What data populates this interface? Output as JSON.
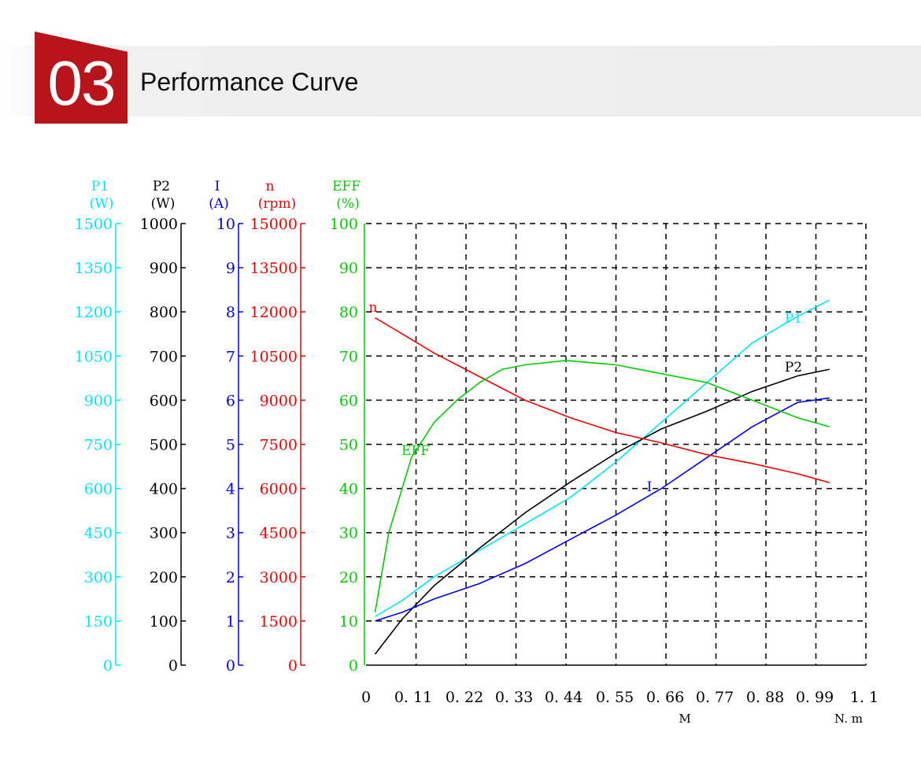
{
  "section": {
    "number": "03",
    "title": "Performance Curve"
  },
  "chart_data": {
    "type": "line",
    "x_axis": {
      "ticks": [
        "0",
        "0. 11",
        "0. 22",
        "0. 33",
        "0. 44",
        "0. 55",
        "0. 66",
        "0. 77",
        "0. 88",
        "0. 99",
        "1. 1"
      ],
      "label": "M",
      "unit": "N. m",
      "range": [
        0,
        1.1
      ]
    },
    "y_axes": [
      {
        "id": "P1",
        "name": "P1",
        "unit": "(W)",
        "color": "#00e5ff",
        "range": [
          0,
          1500
        ],
        "ticks": [
          "0",
          "150",
          "300",
          "450",
          "600",
          "750",
          "900",
          "1050",
          "1200",
          "1350",
          "1500"
        ]
      },
      {
        "id": "P2",
        "name": "P2",
        "unit": "(W)",
        "color": "#000000",
        "range": [
          0,
          1000
        ],
        "ticks": [
          "0",
          "100",
          "200",
          "300",
          "400",
          "500",
          "600",
          "700",
          "800",
          "900",
          "1000"
        ]
      },
      {
        "id": "I",
        "name": "I",
        "unit": "(A)",
        "color": "#0000ee",
        "range": [
          0,
          10
        ],
        "ticks": [
          "0",
          "1",
          "2",
          "3",
          "4",
          "5",
          "6",
          "7",
          "8",
          "9",
          "10"
        ]
      },
      {
        "id": "n",
        "name": "n",
        "unit": "(rpm)",
        "color": "#ee0000",
        "range": [
          0,
          15000
        ],
        "ticks": [
          "0",
          "1500",
          "3000",
          "4500",
          "6000",
          "7500",
          "9000",
          "10500",
          "12000",
          "13500",
          "15000"
        ]
      },
      {
        "id": "EFF",
        "name": "EFF",
        "unit": "(%)",
        "color": "#00cc00",
        "range": [
          0,
          100
        ],
        "ticks": [
          "0",
          "10",
          "20",
          "30",
          "40",
          "50",
          "60",
          "70",
          "80",
          "90",
          "100"
        ]
      }
    ],
    "grid": true,
    "series": [
      {
        "name": "P1",
        "axis": "P1",
        "color": "#00e5ff",
        "x": [
          0.02,
          0.08,
          0.15,
          0.25,
          0.35,
          0.45,
          0.55,
          0.65,
          0.75,
          0.85,
          0.95,
          1.02
        ],
        "y": [
          165,
          220,
          300,
          390,
          480,
          570,
          690,
          825,
          960,
          1095,
          1185,
          1240
        ]
      },
      {
        "name": "P2",
        "axis": "P2",
        "color": "#000000",
        "x": [
          0.02,
          0.08,
          0.15,
          0.25,
          0.35,
          0.45,
          0.55,
          0.65,
          0.75,
          0.85,
          0.95,
          1.02
        ],
        "y": [
          25,
          105,
          180,
          265,
          345,
          415,
          480,
          535,
          575,
          620,
          655,
          670
        ]
      },
      {
        "name": "I",
        "axis": "I",
        "color": "#0000ee",
        "x": [
          0.02,
          0.08,
          0.15,
          0.25,
          0.35,
          0.45,
          0.55,
          0.65,
          0.75,
          0.85,
          0.95,
          1.02
        ],
        "y": [
          1.0,
          1.2,
          1.5,
          1.85,
          2.3,
          2.85,
          3.4,
          4.0,
          4.7,
          5.4,
          5.95,
          6.05
        ]
      },
      {
        "name": "n",
        "axis": "n",
        "color": "#ee0000",
        "x": [
          0.02,
          0.08,
          0.15,
          0.25,
          0.35,
          0.45,
          0.55,
          0.65,
          0.75,
          0.85,
          0.95,
          1.02
        ],
        "y": [
          11800,
          11250,
          10600,
          9800,
          9000,
          8400,
          7900,
          7550,
          7150,
          6850,
          6500,
          6200
        ]
      },
      {
        "name": "EFF",
        "axis": "EFF",
        "color": "#00cc00",
        "x": [
          0.02,
          0.05,
          0.1,
          0.15,
          0.2,
          0.25,
          0.3,
          0.35,
          0.44,
          0.55,
          0.65,
          0.75,
          0.85,
          0.95,
          1.02
        ],
        "y": [
          12,
          30,
          47,
          55,
          60,
          64,
          67,
          68,
          69,
          68,
          66,
          64,
          60,
          56,
          54
        ]
      }
    ]
  }
}
